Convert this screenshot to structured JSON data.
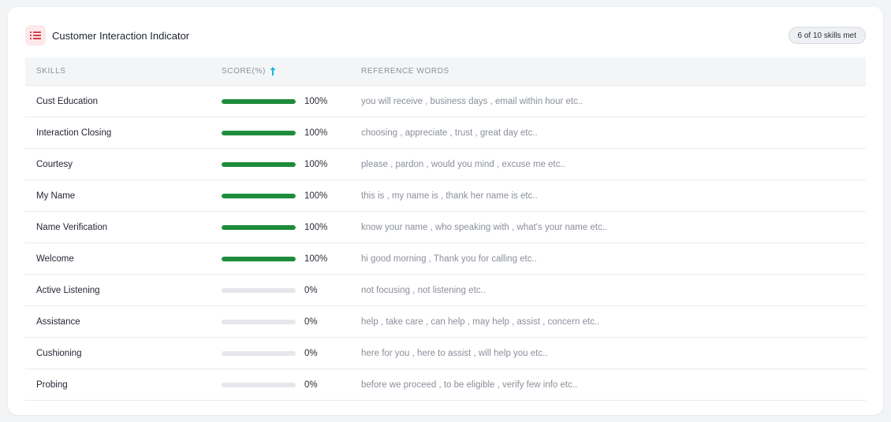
{
  "header": {
    "title": "Customer Interaction Indicator",
    "badge": "6 of 10 skills met",
    "icon": "list-icon",
    "icon_color": "#d43a4a"
  },
  "table": {
    "columns": [
      "SKILLS",
      "SCORE(%)",
      "REFERENCE WORDS"
    ],
    "sort_icon": "arrow-up-icon",
    "sort_color": "#19b6d9",
    "bar_color": "#1e8c3a",
    "rows": [
      {
        "skill": "Cust Education",
        "score": 100,
        "score_label": "100%",
        "words": "you will receive , business days , email within hour etc.."
      },
      {
        "skill": "Interaction Closing",
        "score": 100,
        "score_label": "100%",
        "words": "choosing , appreciate , trust , great day etc.."
      },
      {
        "skill": "Courtesy",
        "score": 100,
        "score_label": "100%",
        "words": "please , pardon , would you mind , excuse me etc.."
      },
      {
        "skill": "My Name",
        "score": 100,
        "score_label": "100%",
        "words": "this is , my name is , thank her name is etc.."
      },
      {
        "skill": "Name Verification",
        "score": 100,
        "score_label": "100%",
        "words": "know your name , who speaking with , what's your name etc.."
      },
      {
        "skill": "Welcome",
        "score": 100,
        "score_label": "100%",
        "words": "hi good morning , Thank you for calling etc.."
      },
      {
        "skill": "Active Listening",
        "score": 0,
        "score_label": "0%",
        "words": "not focusing , not listening etc.."
      },
      {
        "skill": "Assistance",
        "score": 0,
        "score_label": "0%",
        "words": "help , take care , can help , may help , assist , concern etc.."
      },
      {
        "skill": "Cushioning",
        "score": 0,
        "score_label": "0%",
        "words": "here for you , here to assist , will help you etc.."
      },
      {
        "skill": "Probing",
        "score": 0,
        "score_label": "0%",
        "words": "before we proceed , to be eligible , verify few info etc.."
      }
    ]
  }
}
